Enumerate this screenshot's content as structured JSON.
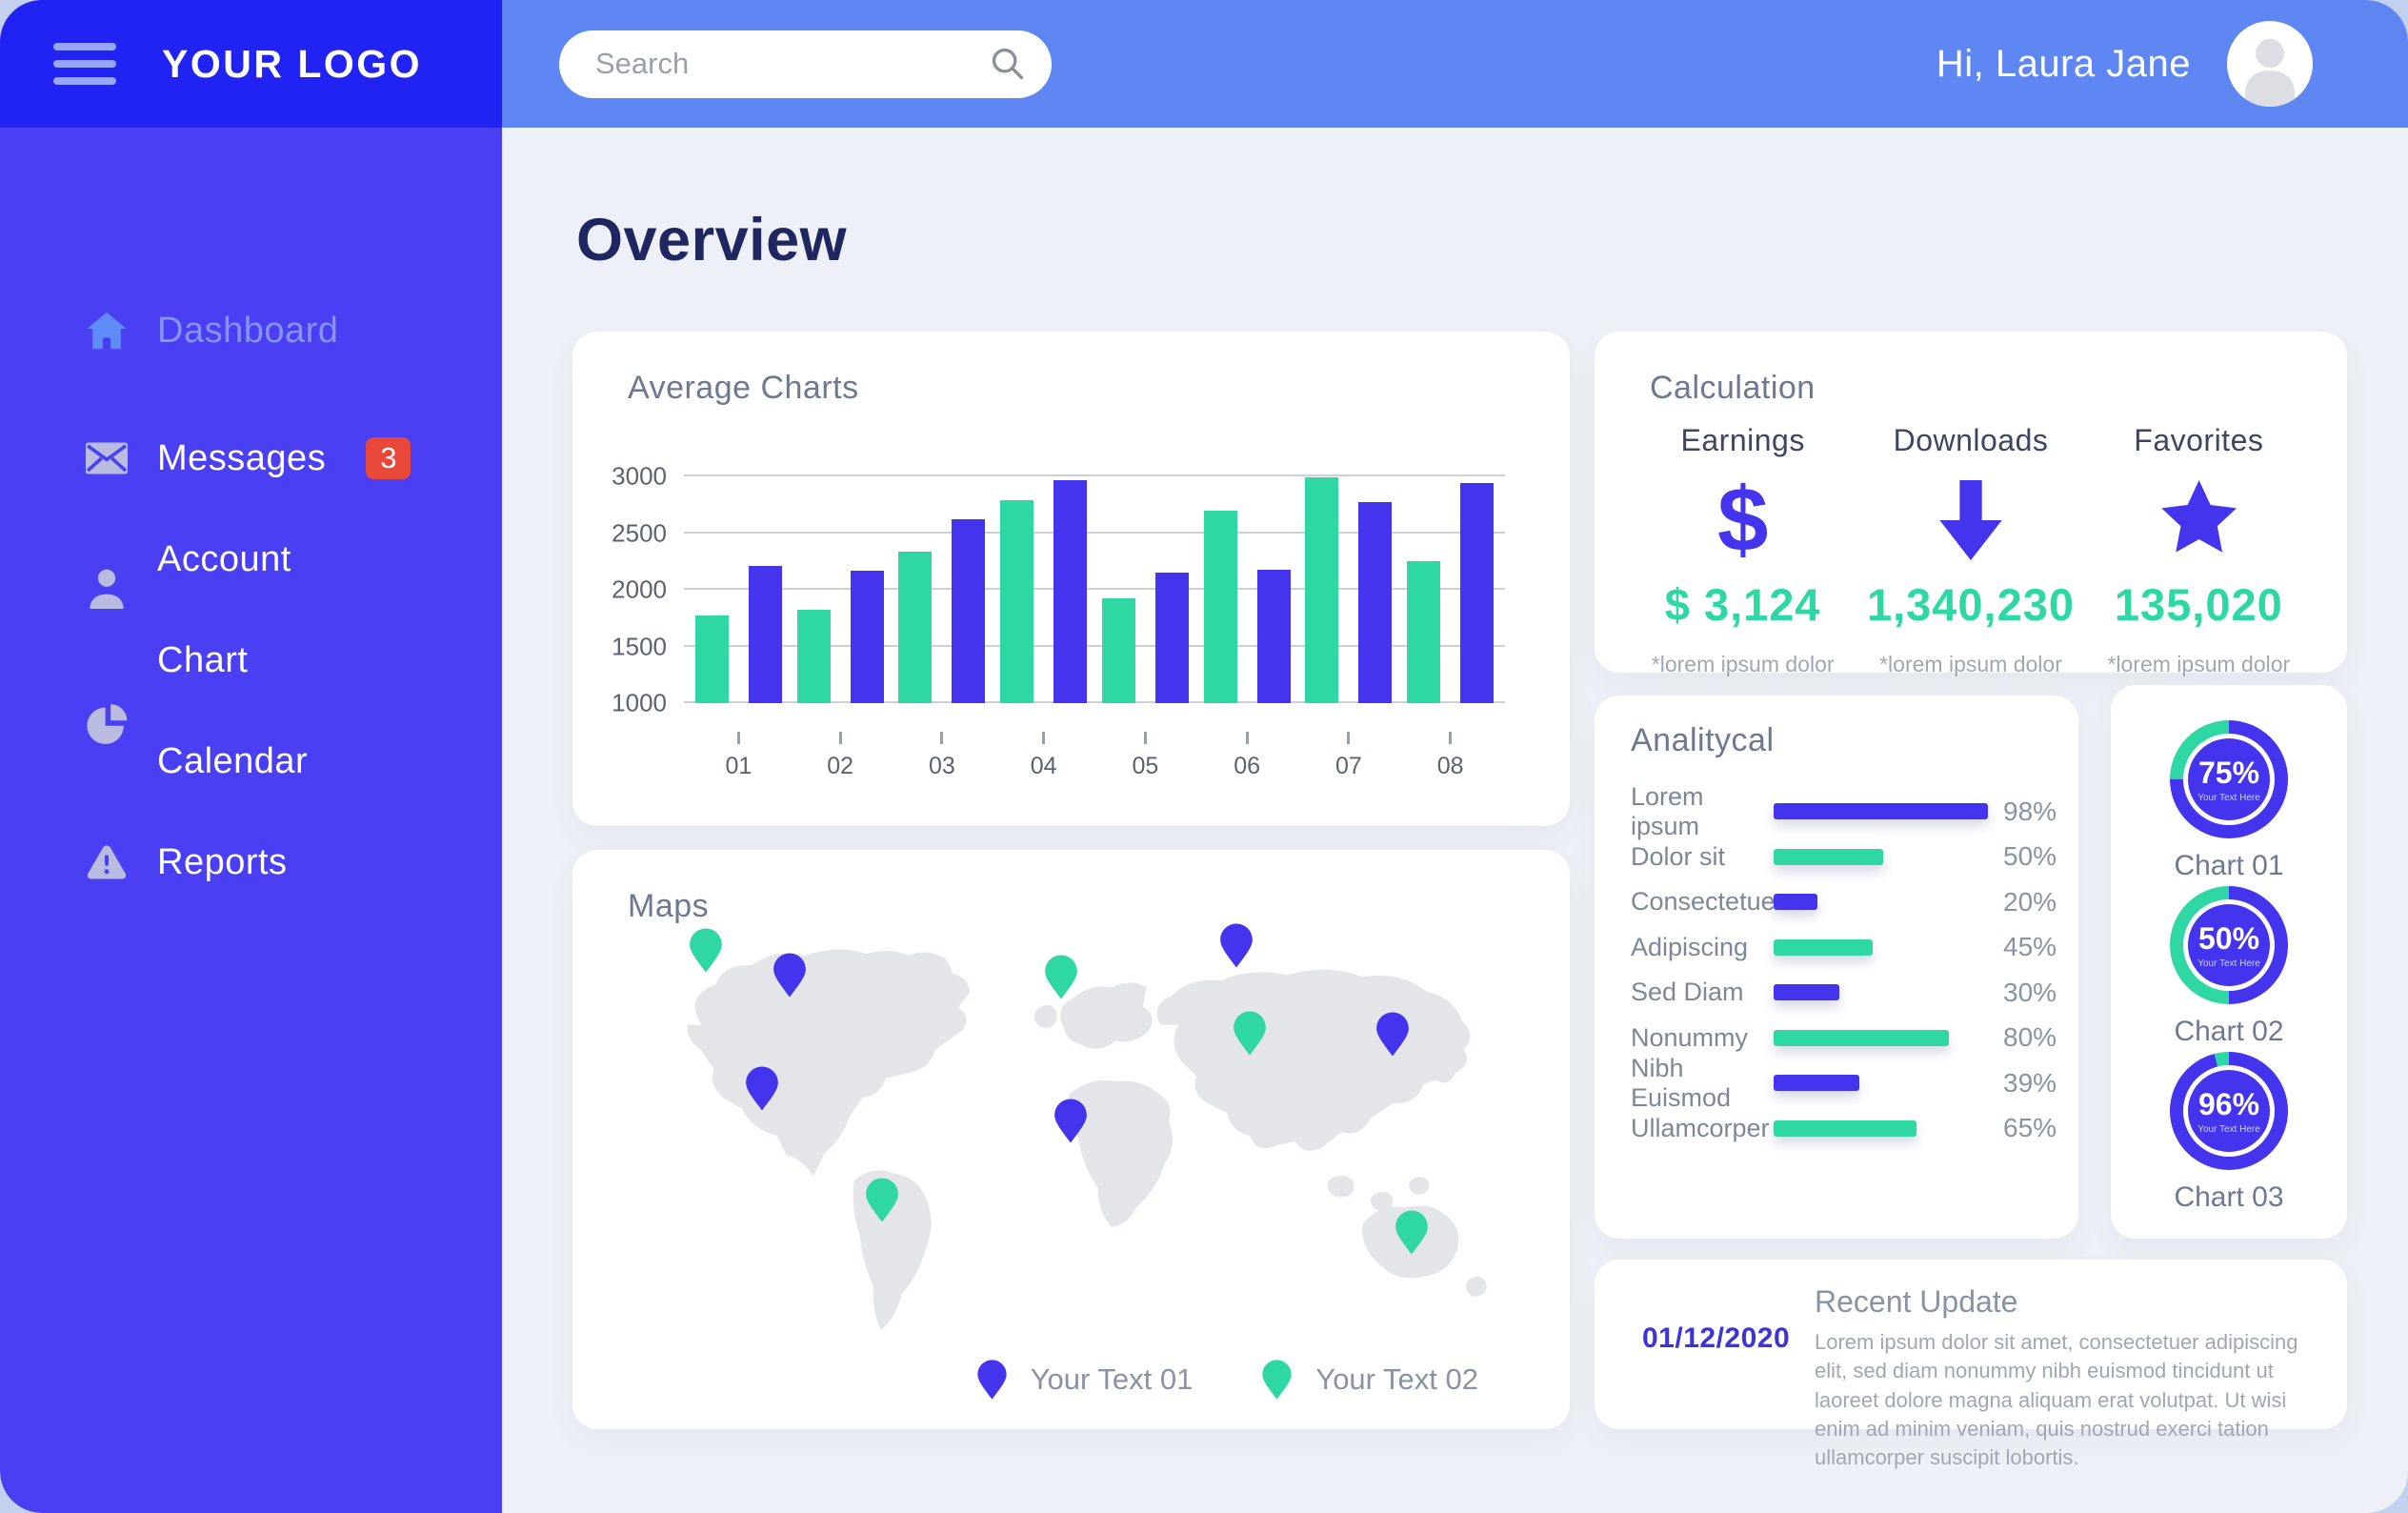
{
  "theme": {
    "sidebar_top": "#2023f2",
    "sidebar_body": "#4a3ff2",
    "topbar": "#5f87f3",
    "bg": "#eef0f7",
    "badge_red": "#e8473a",
    "accent_blue": "#4434ee",
    "accent_green": "#2fd7a4",
    "title_navy": "#20265f",
    "date_blue": "#3c35d6"
  },
  "sidebar": {
    "logo": "YOUR LOGO",
    "items": [
      {
        "label": "Dashboard",
        "icon": "home-icon",
        "active": true
      },
      {
        "label": "Messages",
        "icon": "envelope-icon",
        "badge": "3"
      },
      {
        "label": "Account",
        "icon": "user-icon"
      },
      {
        "label": "Chart",
        "icon": null
      },
      {
        "label": "Calendar",
        "icon": "pie-chart-icon"
      },
      {
        "label": "Reports",
        "icon": "warning-icon"
      }
    ]
  },
  "topbar": {
    "search_placeholder": "Search",
    "greeting": "Hi, Laura Jane"
  },
  "page": {
    "title": "Overview"
  },
  "cards": {
    "average_charts": {
      "title": "Average Charts"
    },
    "maps": {
      "title": "Maps",
      "legend": [
        {
          "label": "Your Text 01",
          "color": "#4434ee"
        },
        {
          "label": "Your Text 02",
          "color": "#2fd7a4"
        }
      ]
    },
    "calculation": {
      "title": "Calculation",
      "stats": [
        {
          "label": "Earnings",
          "icon": "dollar-icon",
          "value": "$ 3,124",
          "note": "*lorem ipsum dolor"
        },
        {
          "label": "Downloads",
          "icon": "down-arrow-icon",
          "value": "1,340,230",
          "note": "*lorem ipsum dolor"
        },
        {
          "label": "Favorites",
          "icon": "star-icon",
          "value": "135,020",
          "note": "*lorem ipsum dolor"
        }
      ]
    },
    "analytical": {
      "title": "Analitycal"
    },
    "recent_update": {
      "date": "01/12/2020",
      "title": "Recent Update",
      "body": "Lorem ipsum dolor sit amet, consectetuer adipiscing elit, sed diam nonummy nibh euismod tincidunt ut laoreet dolore magna aliquam erat volutpat. Ut wisi enim ad minim veniam, quis nostrud exerci tation ullamcorper suscipit lobortis."
    }
  },
  "chart_data": [
    {
      "id": "average",
      "type": "bar",
      "title": "Average Charts",
      "x": [
        "01",
        "02",
        "03",
        "04",
        "05",
        "06",
        "07",
        "08"
      ],
      "series": [
        {
          "name": "series-green",
          "color": "#2fd7a4",
          "values": [
            1775,
            1820,
            2340,
            2790,
            1925,
            2700,
            2990,
            2250
          ]
        },
        {
          "name": "series-blue",
          "color": "#4434ee",
          "values": [
            2210,
            2170,
            2620,
            2970,
            2150,
            2175,
            2775,
            2940
          ]
        }
      ],
      "ylim": [
        1000,
        3000
      ],
      "yticks": [
        1000,
        1500,
        2000,
        2500,
        3000
      ],
      "grid": true,
      "legend_position": "none"
    },
    {
      "id": "analytical",
      "type": "bar",
      "orientation": "horizontal",
      "title": "Analitycal",
      "value_suffix": "%",
      "rows": [
        {
          "label": "Lorem ipsum",
          "value": 98,
          "color": "#4434ee"
        },
        {
          "label": "Dolor sit",
          "value": 50,
          "color": "#2fd7a4"
        },
        {
          "label": "Consectetuer",
          "value": 20,
          "color": "#4434ee"
        },
        {
          "label": "Adipiscing",
          "value": 45,
          "color": "#2fd7a4"
        },
        {
          "label": "Sed Diam",
          "value": 30,
          "color": "#4434ee"
        },
        {
          "label": "Nonummy",
          "value": 80,
          "color": "#2fd7a4"
        },
        {
          "label": "Nibh Euismod",
          "value": 39,
          "color": "#4434ee"
        },
        {
          "label": "Ullamcorper",
          "value": 65,
          "color": "#2fd7a4"
        }
      ]
    },
    {
      "id": "donuts",
      "type": "pie",
      "value_color": "#4434ee",
      "remainder_color": "#2fd7a4",
      "items": [
        {
          "label": "Chart 01",
          "value": 75,
          "center_note": "Your Text Here"
        },
        {
          "label": "Chart 02",
          "value": 50,
          "center_note": "Your Text Here"
        },
        {
          "label": "Chart 03",
          "value": 96,
          "center_note": "Your Text Here"
        }
      ]
    },
    {
      "id": "map",
      "type": "scatter",
      "title": "Maps",
      "series_colors": {
        "Your Text 01": "#4434ee",
        "Your Text 02": "#2fd7a4"
      },
      "pins": [
        {
          "x": 10.4,
          "y": 10.0,
          "series": "Your Text 02"
        },
        {
          "x": 19.5,
          "y": 16.2,
          "series": "Your Text 01"
        },
        {
          "x": 49.1,
          "y": 16.7,
          "series": "Your Text 02"
        },
        {
          "x": 68.2,
          "y": 8.8,
          "series": "Your Text 01"
        },
        {
          "x": 69.7,
          "y": 30.5,
          "series": "Your Text 02"
        },
        {
          "x": 85.3,
          "y": 30.7,
          "series": "Your Text 01"
        },
        {
          "x": 16.5,
          "y": 44.3,
          "series": "Your Text 01"
        },
        {
          "x": 50.2,
          "y": 52.4,
          "series": "Your Text 01"
        },
        {
          "x": 29.6,
          "y": 72.1,
          "series": "Your Text 02"
        },
        {
          "x": 87.3,
          "y": 80.0,
          "series": "Your Text 02"
        }
      ]
    }
  ]
}
